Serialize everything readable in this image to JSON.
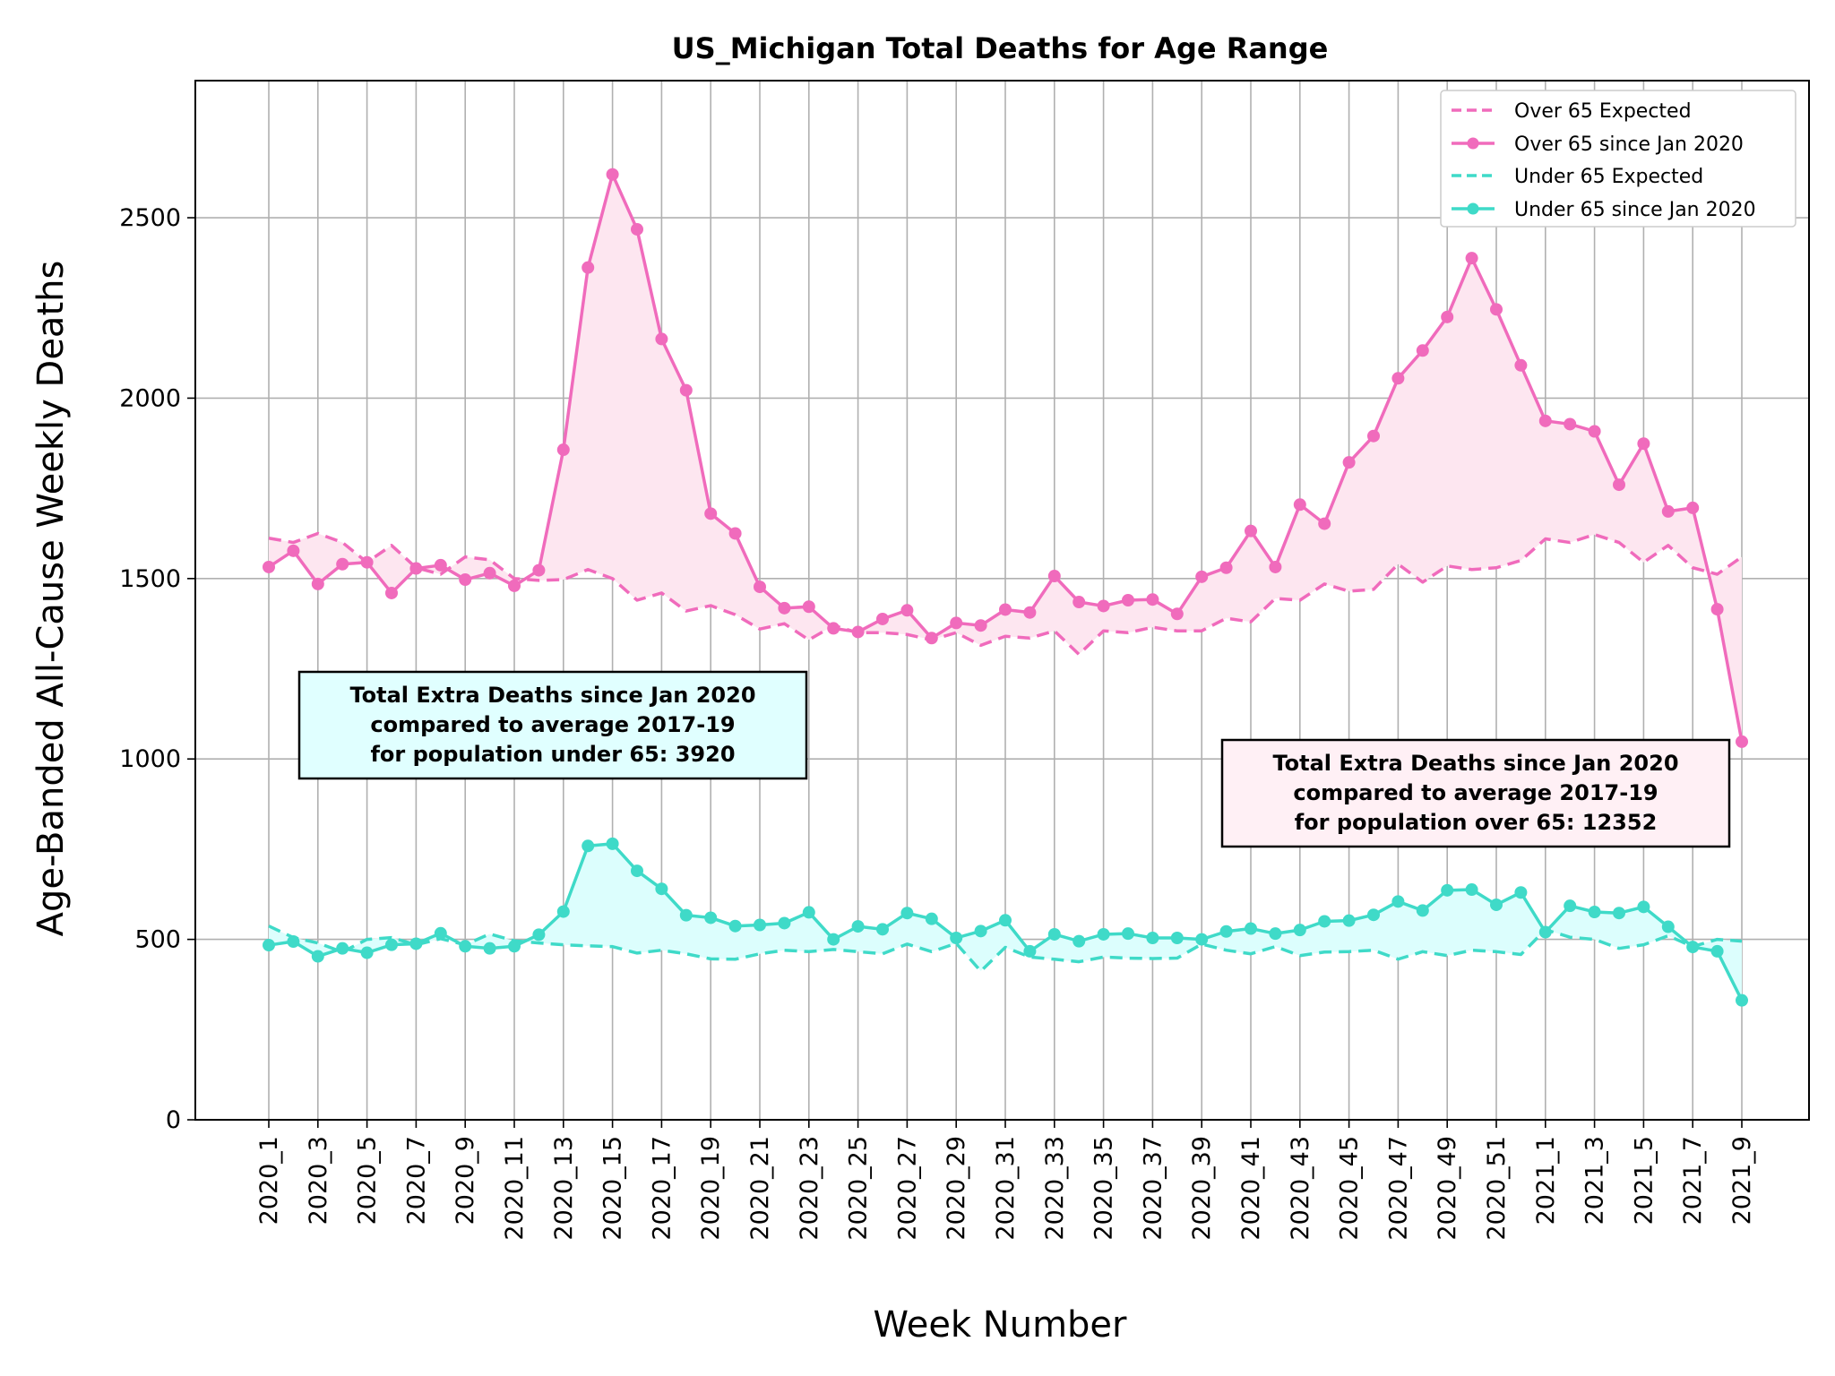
{
  "chart_data": {
    "type": "line",
    "title": "US_Michigan Total Deaths for Age Range",
    "xlabel": "Week Number",
    "ylabel": "Age-Banded All-Cause Weekly Deaths",
    "ylim": [
      0,
      2880
    ],
    "yticks": [
      0,
      500,
      1000,
      1500,
      2000,
      2500
    ],
    "grid": true,
    "legend_position": "top-right",
    "x_tick_labels": [
      "2020_1",
      "2020_3",
      "2020_5",
      "2020_7",
      "2020_9",
      "2020_11",
      "2020_13",
      "2020_15",
      "2020_17",
      "2020_19",
      "2020_21",
      "2020_23",
      "2020_25",
      "2020_27",
      "2020_29",
      "2020_31",
      "2020_33",
      "2020_35",
      "2020_37",
      "2020_39",
      "2020_41",
      "2020_43",
      "2020_45",
      "2020_47",
      "2020_49",
      "2020_51",
      "2021_1",
      "2021_3",
      "2021_5",
      "2021_7",
      "2021_9"
    ],
    "series": [
      {
        "name": "Over 65 Expected",
        "color": "#f06bbc",
        "style": "dashed",
        "values": [
          1612,
          1600,
          1625,
          1600,
          1545,
          1592,
          1530,
          1512,
          1560,
          1552,
          1500,
          1495,
          1497,
          1525,
          1500,
          1440,
          1460,
          1410,
          1425,
          1400,
          1360,
          1375,
          1330,
          1370,
          1350,
          1350,
          1345,
          1330,
          1350,
          1315,
          1340,
          1335,
          1355,
          1290,
          1355,
          1350,
          1365,
          1355,
          1355,
          1390,
          1380,
          1445,
          1440,
          1485,
          1465,
          1470,
          1540,
          1490,
          1535,
          1525,
          1530,
          1550,
          1610,
          1600,
          1622,
          1600,
          1545,
          1592,
          1530,
          1512,
          1560
        ]
      },
      {
        "name": "Over 65 since Jan 2020",
        "color": "#f06bbc",
        "style": "solid",
        "values": [
          1532,
          1577,
          1485,
          1540,
          1545,
          1460,
          1528,
          1537,
          1497,
          1515,
          1480,
          1523,
          1857,
          2362,
          2620,
          2468,
          2164,
          2022,
          1680,
          1625,
          1477,
          1418,
          1422,
          1362,
          1352,
          1388,
          1412,
          1335,
          1377,
          1370,
          1414,
          1406,
          1507,
          1435,
          1424,
          1440,
          1442,
          1402,
          1505,
          1530,
          1632,
          1532,
          1705,
          1652,
          1822,
          1895,
          2055,
          2132,
          2225,
          2388,
          2246,
          2091,
          1937,
          1928,
          1908,
          1760,
          1874,
          1686,
          1696,
          1415,
          1048
        ]
      },
      {
        "name": "Under 65 Expected",
        "color": "#3fdac8",
        "style": "dashed",
        "values": [
          537,
          505,
          490,
          465,
          500,
          505,
          485,
          502,
          485,
          515,
          496,
          490,
          485,
          482,
          480,
          462,
          470,
          460,
          446,
          445,
          460,
          470,
          466,
          472,
          466,
          460,
          487,
          466,
          489,
          412,
          478,
          451,
          445,
          438,
          451,
          448,
          447,
          448,
          487,
          470,
          460,
          480,
          455,
          465,
          466,
          470,
          445,
          466,
          455,
          470,
          466,
          458,
          527,
          506,
          500,
          475,
          485,
          510,
          480,
          500,
          495
        ]
      },
      {
        "name": "Under 65 since Jan 2020",
        "color": "#3fdac8",
        "style": "solid",
        "values": [
          484,
          494,
          453,
          475,
          463,
          485,
          488,
          517,
          481,
          475,
          481,
          513,
          577,
          759,
          765,
          690,
          640,
          567,
          560,
          537,
          540,
          545,
          575,
          500,
          536,
          528,
          573,
          557,
          504,
          523,
          553,
          467,
          514,
          495,
          514,
          516,
          504,
          504,
          500,
          522,
          530,
          516,
          526,
          550,
          552,
          568,
          605,
          580,
          636,
          638,
          596,
          630,
          520,
          593,
          576,
          573,
          590,
          535,
          479,
          467,
          331
        ]
      }
    ],
    "annotations": [
      {
        "line1": "Total Extra Deaths since Jan 2020",
        "line2": "compared to average 2017-19",
        "line3": "for population under 65: 3920",
        "background": "#e0ffff"
      },
      {
        "line1": "Total Extra Deaths since Jan 2020",
        "line2": "compared to average 2017-19",
        "line3": "for population over 65: 12352",
        "background": "#fff0f5"
      }
    ]
  }
}
